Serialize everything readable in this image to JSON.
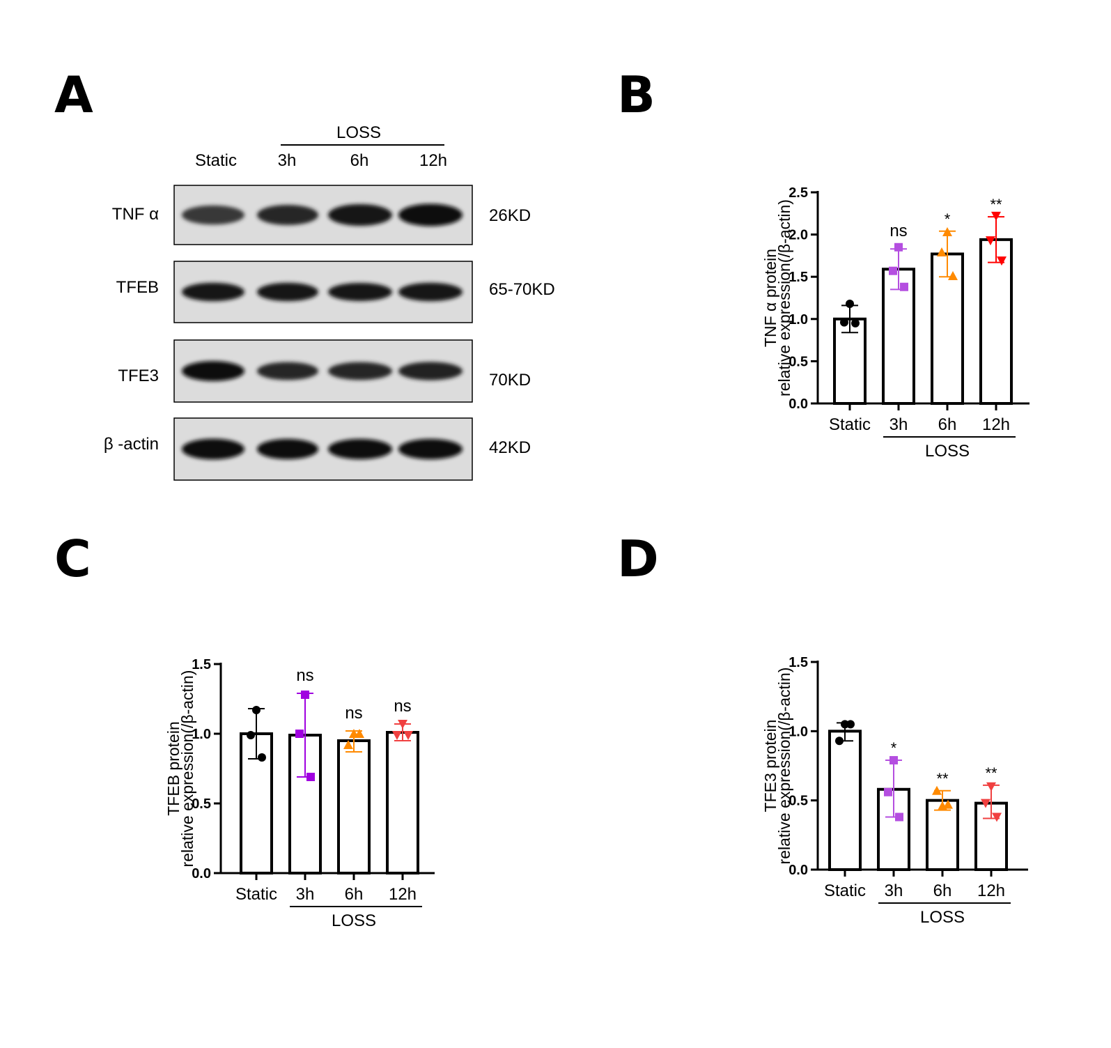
{
  "panels": {
    "A": "A",
    "B": "B",
    "C": "C",
    "D": "D"
  },
  "blot": {
    "group_label": "LOSS",
    "lanes": [
      "Static",
      "3h",
      "6h",
      "12h"
    ],
    "rows": [
      {
        "name": "TNF α",
        "size": "26KD",
        "intensity": [
          0.55,
          0.7,
          0.9,
          1.0
        ],
        "band_height": 1.0
      },
      {
        "name": "TFEB",
        "size": "65-70KD",
        "intensity": [
          0.9,
          0.9,
          0.85,
          0.9
        ],
        "band_height": 0.8
      },
      {
        "name": "TFE3",
        "size": "70KD",
        "intensity": [
          1.0,
          0.7,
          0.7,
          0.75
        ],
        "band_height": 0.85
      },
      {
        "name": "β -actin",
        "size": "42KD",
        "intensity": [
          1.0,
          0.95,
          0.95,
          0.95
        ],
        "band_height": 0.9
      }
    ]
  },
  "chart_data": [
    {
      "panel": "B",
      "type": "bar",
      "categories": [
        "Static",
        "3h",
        "6h",
        "12h"
      ],
      "group_label": "LOSS",
      "ylabel_line1": "TNF α protein",
      "ylabel_line2": "relative expression(/β-actin)",
      "ylim": [
        0,
        2.5
      ],
      "yticks": [
        "0.0",
        "0.5",
        "1.0",
        "1.5",
        "2.0",
        "2.5"
      ],
      "values": [
        1.0,
        1.59,
        1.77,
        1.94
      ],
      "err_low": [
        0.84,
        1.35,
        1.5,
        1.67
      ],
      "err_high": [
        1.16,
        1.83,
        2.04,
        2.21
      ],
      "points": [
        [
          1.18,
          0.96,
          0.95
        ],
        [
          1.85,
          1.57,
          1.38
        ],
        [
          2.03,
          1.79,
          1.51
        ],
        [
          2.22,
          1.93,
          1.69
        ]
      ],
      "markers": [
        "circle",
        "square",
        "triangle-up",
        "triangle-down"
      ],
      "colors": [
        "#000000",
        "#b44ee0",
        "#ff8a00",
        "#ff0000"
      ],
      "annotations": [
        "",
        "ns",
        "*",
        "**"
      ]
    },
    {
      "panel": "C",
      "type": "bar",
      "categories": [
        "Static",
        "3h",
        "6h",
        "12h"
      ],
      "group_label": "LOSS",
      "ylabel_line1": "TFEB protein",
      "ylabel_line2": "relative expression(/β-actin)",
      "ylim": [
        0,
        1.5
      ],
      "yticks": [
        "0.0",
        "0.5",
        "1.0",
        "1.5"
      ],
      "values": [
        1.0,
        0.99,
        0.95,
        1.01
      ],
      "err_low": [
        0.82,
        0.69,
        0.87,
        0.95
      ],
      "err_high": [
        1.18,
        1.29,
        1.02,
        1.07
      ],
      "points": [
        [
          1.17,
          0.99,
          0.83
        ],
        [
          1.28,
          1.0,
          0.69
        ],
        [
          1.0,
          0.92,
          1.0
        ],
        [
          1.07,
          0.99,
          0.99
        ]
      ],
      "markers": [
        "circle",
        "square",
        "triangle-up",
        "triangle-down"
      ],
      "colors": [
        "#000000",
        "#a000e0",
        "#ff8a00",
        "#f04040"
      ],
      "annotations": [
        "",
        "ns",
        "ns",
        "ns"
      ]
    },
    {
      "panel": "D",
      "type": "bar",
      "categories": [
        "Static",
        "3h",
        "6h",
        "12h"
      ],
      "group_label": "LOSS",
      "ylabel_line1": "TFE3 protein",
      "ylabel_line2": "relative expression(/β-actin)",
      "ylim": [
        0,
        1.5
      ],
      "yticks": [
        "0.0",
        "0.5",
        "1.0",
        "1.5"
      ],
      "values": [
        1.0,
        0.58,
        0.5,
        0.48
      ],
      "err_low": [
        0.93,
        0.38,
        0.43,
        0.37
      ],
      "err_high": [
        1.06,
        0.79,
        0.57,
        0.61
      ],
      "points": [
        [
          1.05,
          0.93,
          1.05
        ],
        [
          0.79,
          0.56,
          0.38
        ],
        [
          0.46,
          0.57,
          0.47
        ],
        [
          0.6,
          0.48,
          0.38
        ]
      ],
      "markers": [
        "circle",
        "square",
        "triangle-up",
        "triangle-down"
      ],
      "colors": [
        "#000000",
        "#b44ee0",
        "#ff8a00",
        "#f04040"
      ],
      "annotations": [
        "",
        "*",
        "**",
        "**"
      ]
    }
  ]
}
